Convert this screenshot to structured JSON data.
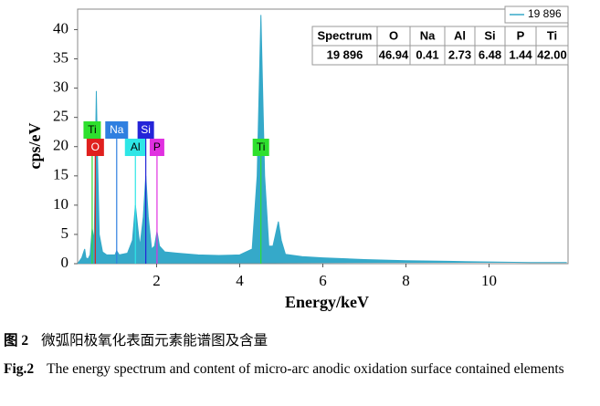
{
  "chart_data": {
    "type": "area",
    "xlabel": "Energy/keV",
    "ylabel": "cps/eV",
    "xlim": [
      0.1,
      11.9
    ],
    "ylim": [
      0,
      43.5
    ],
    "xticks": [
      2,
      4,
      6,
      8,
      10
    ],
    "yticks": [
      0,
      5,
      10,
      15,
      20,
      25,
      30,
      35,
      40
    ],
    "series": [
      {
        "name": "19 896",
        "color": "#35a9c9",
        "x": [
          0.1,
          0.2,
          0.27,
          0.3,
          0.35,
          0.4,
          0.45,
          0.5,
          0.52,
          0.55,
          0.58,
          0.62,
          0.7,
          0.8,
          1.0,
          1.04,
          1.1,
          1.3,
          1.42,
          1.49,
          1.55,
          1.6,
          1.68,
          1.74,
          1.8,
          1.88,
          1.95,
          2.01,
          2.07,
          2.2,
          2.5,
          3.0,
          3.5,
          4.0,
          4.3,
          4.42,
          4.51,
          4.6,
          4.7,
          4.8,
          4.93,
          5.0,
          5.1,
          5.5,
          6.0,
          7.0,
          8.0,
          9.0,
          10.0,
          11.0,
          11.87
        ],
        "values": [
          0,
          1,
          2.5,
          1,
          0.8,
          1.5,
          6,
          4,
          15,
          29.5,
          18,
          5,
          2,
          1.5,
          1.5,
          2.2,
          1.5,
          1.8,
          4,
          10,
          6,
          3,
          8,
          15,
          8,
          2.5,
          3,
          5.5,
          3,
          2,
          1.8,
          1.5,
          1.4,
          1.5,
          2.5,
          15,
          42.5,
          15,
          3,
          3,
          7.2,
          4,
          1.6,
          1.2,
          1,
          0.7,
          0.5,
          0.4,
          0.3,
          0.2,
          0.2
        ]
      }
    ],
    "element_labels": [
      {
        "text": "Ti",
        "x": 0.45,
        "color": "#2ee02e"
      },
      {
        "text": "O",
        "x": 0.525,
        "color": "#e0201e"
      },
      {
        "text": "Na",
        "x": 1.04,
        "color": "#2f7fe0"
      },
      {
        "text": "Al",
        "x": 1.49,
        "color": "#2ee6e6"
      },
      {
        "text": "Si",
        "x": 1.74,
        "color": "#2424d8"
      },
      {
        "text": "P",
        "x": 2.01,
        "color": "#e030e0"
      },
      {
        "text": "Ti",
        "x": 4.51,
        "color": "#2ee02e"
      }
    ],
    "table": {
      "columns": [
        "Spectrum",
        "O",
        "Na",
        "Al",
        "Si",
        "P",
        "Ti"
      ],
      "rows": [
        [
          "19 896",
          "46.94",
          "0.41",
          "2.73",
          "6.48",
          "1.44",
          "42.00"
        ]
      ]
    }
  },
  "caption": {
    "cn_label": "图 2",
    "cn_text": "微弧阳极氧化表面元素能谱图及含量",
    "en_label": "Fig.2",
    "en_text": "The energy spectrum and content of micro-arc anodic oxidation surface contained elements"
  }
}
